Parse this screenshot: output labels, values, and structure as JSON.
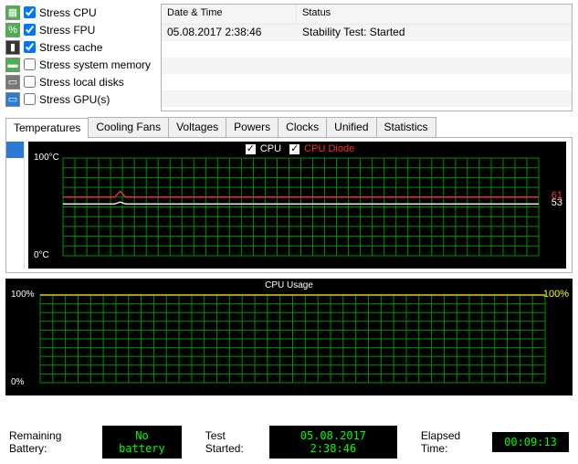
{
  "stress_options": [
    {
      "label": "Stress CPU",
      "checked": true,
      "icon_bg": "#4caf50",
      "icon_glyph": "▦"
    },
    {
      "label": "Stress FPU",
      "checked": true,
      "icon_bg": "#4caf50",
      "icon_glyph": "%"
    },
    {
      "label": "Stress cache",
      "checked": true,
      "icon_bg": "#333333",
      "icon_glyph": "▮"
    },
    {
      "label": "Stress system memory",
      "checked": false,
      "icon_bg": "#4caf50",
      "icon_glyph": "▬"
    },
    {
      "label": "Stress local disks",
      "checked": false,
      "icon_bg": "#777777",
      "icon_glyph": "▭"
    },
    {
      "label": "Stress GPU(s)",
      "checked": false,
      "icon_bg": "#2a7ad6",
      "icon_glyph": "▭"
    }
  ],
  "log": {
    "col_datetime": "Date & Time",
    "col_status": "Status",
    "rows": [
      {
        "dt": "05.08.2017 2:38:46",
        "status": "Stability Test: Started"
      }
    ]
  },
  "tabs": [
    "Temperatures",
    "Cooling Fans",
    "Voltages",
    "Powers",
    "Clocks",
    "Unified",
    "Statistics"
  ],
  "active_tab": "Temperatures",
  "temp_chart": {
    "type": "line",
    "legend": [
      {
        "label": "CPU",
        "color": "#ffffff"
      },
      {
        "label": "CPU Diode",
        "color": "#ff3030"
      }
    ],
    "y_top_label": "100°C",
    "y_bottom_label": "0°C",
    "ylim": [
      0,
      100
    ],
    "grid_color": "#009000",
    "background": "#000000",
    "series": [
      {
        "name": "CPU",
        "color": "#ffffff",
        "current": 53,
        "baseline": 53,
        "spike_x_frac": 0.12,
        "spike_val": 55
      },
      {
        "name": "CPU Diode",
        "color": "#ff3030",
        "current": 61,
        "baseline": 60,
        "spike_x_frac": 0.12,
        "spike_val": 66
      }
    ]
  },
  "usage_chart": {
    "type": "line",
    "title": "CPU Usage",
    "y_top_label": "100%",
    "y_bottom_label": "0%",
    "ylim": [
      0,
      100
    ],
    "grid_color": "#009000",
    "background": "#000000",
    "series": [
      {
        "name": "CPU Usage",
        "color": "#ffff00",
        "current": 100,
        "current_label": "100%",
        "flat_value": 100
      }
    ]
  },
  "statusbar": {
    "battery_label": "Remaining Battery:",
    "battery_value": "No battery",
    "started_label": "Test Started:",
    "started_value": "05.08.2017 2:38:46",
    "elapsed_label": "Elapsed Time:",
    "elapsed_value": "00:09:13"
  }
}
